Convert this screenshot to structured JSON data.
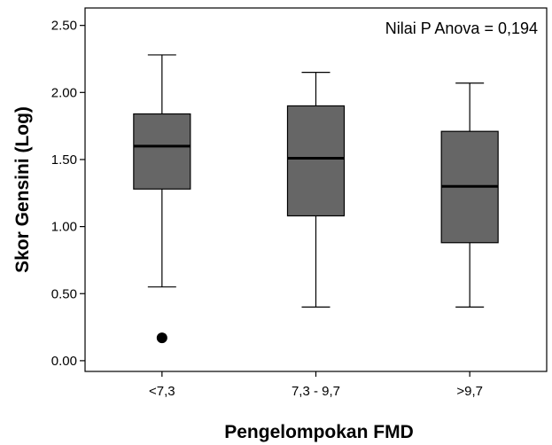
{
  "chart_data": {
    "type": "boxplot",
    "title": "",
    "xlabel": "Pengelompokan FMD",
    "ylabel": "Skor Gensini (Log)",
    "annotation": "Nilai P Anova = 0,194",
    "ylim": [
      -0.08,
      2.63
    ],
    "yticks": [
      "0.00",
      "0.50",
      "1.00",
      "1.50",
      "2.00",
      "2.50"
    ],
    "grid": false,
    "box_color": "#666666",
    "categories": [
      "<7,3",
      "7,3 - 9,7",
      ">9,7"
    ],
    "boxes": [
      {
        "category": "<7,3",
        "whisker_low": 0.55,
        "q1": 1.28,
        "median": 1.6,
        "q3": 1.84,
        "whisker_high": 2.28,
        "outliers": [
          0.17
        ]
      },
      {
        "category": "7,3 - 9,7",
        "whisker_low": 0.4,
        "q1": 1.08,
        "median": 1.51,
        "q3": 1.9,
        "whisker_high": 2.15,
        "outliers": []
      },
      {
        "category": ">9,7",
        "whisker_low": 0.4,
        "q1": 0.88,
        "median": 1.3,
        "q3": 1.71,
        "whisker_high": 2.07,
        "outliers": []
      }
    ]
  }
}
